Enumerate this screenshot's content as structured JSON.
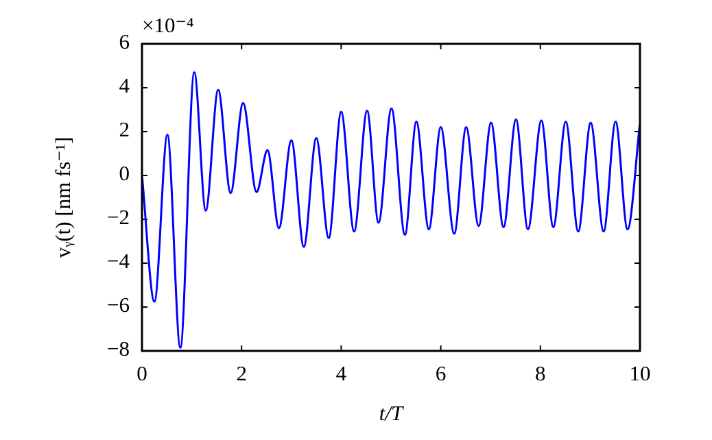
{
  "chart_data": {
    "type": "line",
    "xlabel": "t/T",
    "ylabel": "vᵧ(t) [nm fs⁻¹]",
    "y_offset_text": "×10⁻⁴",
    "color": "#0000ff",
    "x": [
      0,
      0.25,
      0.51,
      0.77,
      1.05,
      1.28,
      1.53,
      1.78,
      2.03,
      2.3,
      2.52,
      2.75,
      3.0,
      3.25,
      3.5,
      3.75,
      4.0,
      4.26,
      4.52,
      4.75,
      5.01,
      5.28,
      5.51,
      5.76,
      6.0,
      6.27,
      6.51,
      6.76,
      7.01,
      7.26,
      7.51,
      7.75,
      8.02,
      8.26,
      8.51,
      8.76,
      9.01,
      9.27,
      9.51,
      9.75,
      10
    ],
    "values": [
      0,
      -5.75,
      1.85,
      -7.85,
      4.7,
      -1.6,
      3.9,
      -0.8,
      3.3,
      -0.75,
      1.15,
      -2.4,
      1.6,
      -3.25,
      1.7,
      -2.85,
      2.9,
      -2.55,
      2.95,
      -2.15,
      3.05,
      -2.7,
      2.45,
      -2.45,
      2.2,
      -2.65,
      2.2,
      -2.3,
      2.4,
      -2.35,
      2.55,
      -2.45,
      2.5,
      -2.35,
      2.45,
      -2.55,
      2.4,
      -2.55,
      2.45,
      -2.45,
      2.4
    ],
    "xlim": [
      0,
      10
    ],
    "xticks": [
      0,
      2,
      4,
      6,
      8,
      10
    ],
    "ylim": [
      -8,
      6
    ],
    "yticks": [
      {
        "value": -8,
        "label": "−8"
      },
      {
        "value": -6,
        "label": "−6"
      },
      {
        "value": -4,
        "label": "−4"
      },
      {
        "value": -2,
        "label": "−2"
      },
      0,
      2,
      4,
      6
    ]
  }
}
